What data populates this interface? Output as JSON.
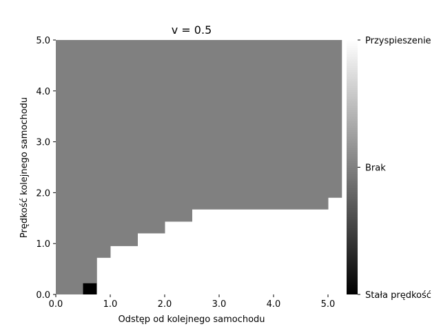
{
  "chart_data": {
    "type": "heatmap",
    "title": "v = 0.5",
    "xlabel": "Odstęp od kolejnego samochodu",
    "ylabel": "Prędkość kolejnego samochodu",
    "xlim": [
      0.0,
      5.2
    ],
    "ylim": [
      0.0,
      5.0
    ],
    "x_ticks": [
      "0.0",
      "1.0",
      "2.0",
      "3.0",
      "4.0",
      "5.0"
    ],
    "y_ticks": [
      "0.0",
      "1.0",
      "2.0",
      "3.0",
      "4.0",
      "5.0"
    ],
    "colorbar": {
      "labels": [
        "Przyspieszenie",
        "Brak",
        "Stała prędkość"
      ],
      "colors": [
        "#ffffff",
        "#808080",
        "#000000"
      ]
    },
    "regions": {
      "gray_steps": [
        {
          "x": 0.5,
          "y": 0.0
        },
        {
          "x": 0.75,
          "y": 0.72
        },
        {
          "x": 1.0,
          "y": 0.95
        },
        {
          "x": 1.5,
          "y": 1.2
        },
        {
          "x": 2.0,
          "y": 1.43
        },
        {
          "x": 2.5,
          "y": 1.67
        },
        {
          "x": 5.0,
          "y": 1.9
        },
        {
          "x": 5.25,
          "y": 2.38
        }
      ],
      "black_cell": {
        "x0": 0.5,
        "x1": 0.75,
        "y0": 0.0,
        "y1": 0.22
      }
    }
  }
}
